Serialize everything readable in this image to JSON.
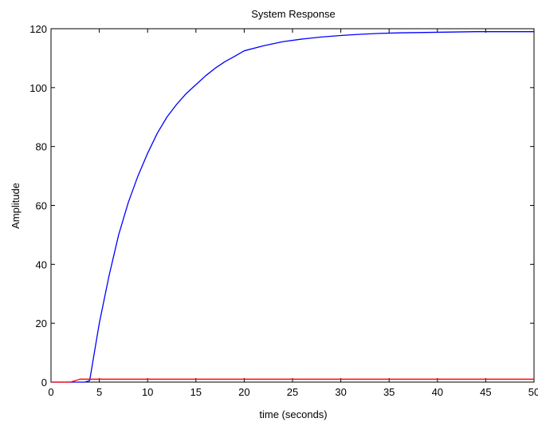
{
  "chart_data": {
    "type": "line",
    "title": "System Response",
    "xlabel": "time (seconds)",
    "ylabel": "Amplitude",
    "xlim": [
      0,
      50
    ],
    "ylim": [
      0,
      120
    ],
    "xticks": [
      0,
      5,
      10,
      15,
      20,
      25,
      30,
      35,
      40,
      45,
      50
    ],
    "yticks": [
      0,
      20,
      40,
      60,
      80,
      100,
      120
    ],
    "xtick_labels": [
      "0",
      "5",
      "10",
      "15",
      "20",
      "25",
      "30",
      "35",
      "40",
      "45",
      "50"
    ],
    "ytick_labels": [
      "0",
      "20",
      "40",
      "60",
      "80",
      "100",
      "120"
    ],
    "grid": false,
    "legend": "none",
    "series": [
      {
        "color": "#0000ff",
        "x": [
          0,
          3.5,
          4.0,
          5,
          6,
          7,
          8,
          9,
          10,
          11,
          12,
          13,
          14,
          15,
          16,
          17,
          18,
          19,
          20,
          22,
          24,
          26,
          28,
          30,
          32,
          34,
          36,
          38,
          40,
          42,
          44,
          46,
          48,
          50
        ],
        "y": [
          0,
          0,
          0.5,
          20,
          36,
          50,
          61,
          70,
          77.7,
          84.5,
          90,
          94.3,
          98,
          101,
          104,
          106.6,
          108.8,
          110.6,
          112.5,
          114.2,
          115.6,
          116.5,
          117.2,
          117.7,
          118.1,
          118.4,
          118.6,
          118.7,
          118.8,
          118.9,
          119,
          119,
          119,
          119
        ]
      },
      {
        "color": "#ff0000",
        "x": [
          0,
          2.0,
          3.0,
          50
        ],
        "y": [
          0,
          0,
          1,
          1
        ]
      }
    ]
  }
}
